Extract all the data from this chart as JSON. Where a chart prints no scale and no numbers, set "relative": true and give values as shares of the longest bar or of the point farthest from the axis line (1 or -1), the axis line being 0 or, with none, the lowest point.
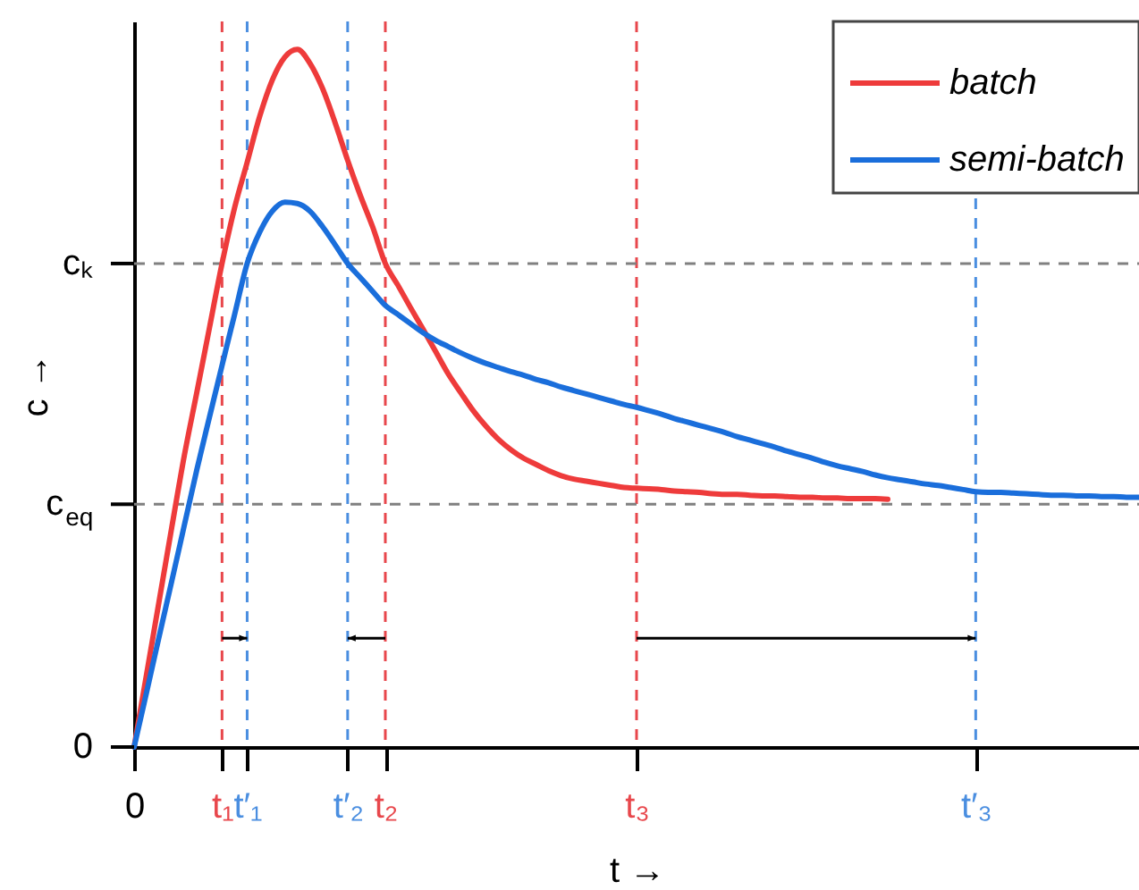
{
  "chart_data": {
    "type": "line",
    "relative": true,
    "xlabel": "t →",
    "ylabel": "c →",
    "legend": "top right",
    "categories": [
      "0",
      null,
      null,
      null,
      null,
      null,
      null,
      "t₁",
      null,
      "t′₁",
      null,
      null,
      null,
      null,
      null,
      null,
      null,
      "t′₂",
      null,
      null,
      "t₂",
      null,
      null,
      null,
      null,
      null,
      null,
      null,
      null,
      null,
      null,
      null,
      null,
      null,
      null,
      null,
      null,
      null,
      null,
      null,
      "t₃",
      null,
      null,
      null,
      null,
      null,
      null,
      null,
      null,
      null,
      null,
      null,
      null,
      null,
      null,
      null,
      null,
      null,
      null,
      null,
      null,
      null,
      null,
      null,
      null,
      null,
      null,
      "t′₃",
      null,
      null,
      null,
      null,
      null,
      null,
      null,
      null,
      null,
      null,
      null,
      null,
      null
    ],
    "series": [
      {
        "name": "batch",
        "color": "#ee3b3b",
        "values": [
          0,
          0.105,
          0.21,
          0.315,
          0.418,
          0.509,
          0.601,
          0.693,
          0.773,
          0.838,
          0.904,
          0.956,
          0.989,
          1,
          0.98,
          0.944,
          0.895,
          0.841,
          0.791,
          0.745,
          0.693,
          0.662,
          0.63,
          0.599,
          0.567,
          0.535,
          0.508,
          0.482,
          0.46,
          0.441,
          0.426,
          0.414,
          0.405,
          0.396,
          0.389,
          0.384,
          0.381,
          0.378,
          0.375,
          0.372,
          0.371,
          0.37,
          0.369,
          0.367,
          0.366,
          0.365,
          0.363,
          0.362,
          0.362,
          0.361,
          0.36,
          0.36,
          0.359,
          0.358,
          0.358,
          0.357,
          0.357,
          0.356,
          0.356,
          0.356,
          0.355,
          null,
          null,
          null,
          null,
          null,
          null,
          null,
          null,
          null,
          null,
          null,
          null,
          null,
          null,
          null,
          null,
          null,
          null,
          null,
          null
        ]
      },
      {
        "name": "semi-batch",
        "color": "#1a6edb",
        "values": [
          0,
          0.079,
          0.159,
          0.238,
          0.318,
          0.398,
          0.473,
          0.547,
          0.62,
          0.693,
          0.738,
          0.768,
          0.781,
          0.779,
          0.768,
          0.746,
          0.72,
          0.693,
          0.673,
          0.653,
          0.633,
          0.62,
          0.607,
          0.594,
          0.583,
          0.574,
          0.565,
          0.557,
          0.55,
          0.544,
          0.538,
          0.533,
          0.527,
          0.522,
          0.516,
          0.511,
          0.506,
          0.501,
          0.496,
          0.491,
          0.487,
          0.482,
          0.477,
          0.471,
          0.466,
          0.461,
          0.456,
          0.451,
          0.445,
          0.44,
          0.435,
          0.43,
          0.424,
          0.419,
          0.414,
          0.408,
          0.403,
          0.399,
          0.395,
          0.39,
          0.386,
          0.383,
          0.38,
          0.377,
          0.375,
          0.372,
          0.369,
          0.366,
          0.365,
          0.365,
          0.364,
          0.363,
          0.362,
          0.361,
          0.361,
          0.36,
          0.36,
          0.359,
          0.359,
          0.358,
          0.358
        ]
      }
    ],
    "ref_lines": [
      {
        "axis": "x",
        "value": "t₁",
        "color": "#e8474c",
        "line_style": "dashed"
      },
      {
        "axis": "x",
        "value": "t′₁",
        "color": "#4a8ee0",
        "line_style": "dashed"
      },
      {
        "axis": "x",
        "value": "t₂",
        "color": "#e8474c",
        "line_style": "dashed"
      },
      {
        "axis": "x",
        "value": "t′₂",
        "color": "#4a8ee0",
        "line_style": "dashed"
      },
      {
        "axis": "x",
        "value": "t₃",
        "color": "#e8474c",
        "line_style": "dashed"
      },
      {
        "axis": "x",
        "value": "t′₃",
        "color": "#4a8ee0",
        "line_style": "dashed"
      },
      {
        "axis": "y",
        "value": 0.693,
        "label": "cₖ",
        "color": "#808080",
        "line_style": "dashed"
      },
      {
        "axis": "y",
        "value": 0.348,
        "label": "c$_{eq}$",
        "color": "#808080",
        "line_style": "dashed"
      }
    ],
    "annotations": [
      "0"
    ]
  }
}
